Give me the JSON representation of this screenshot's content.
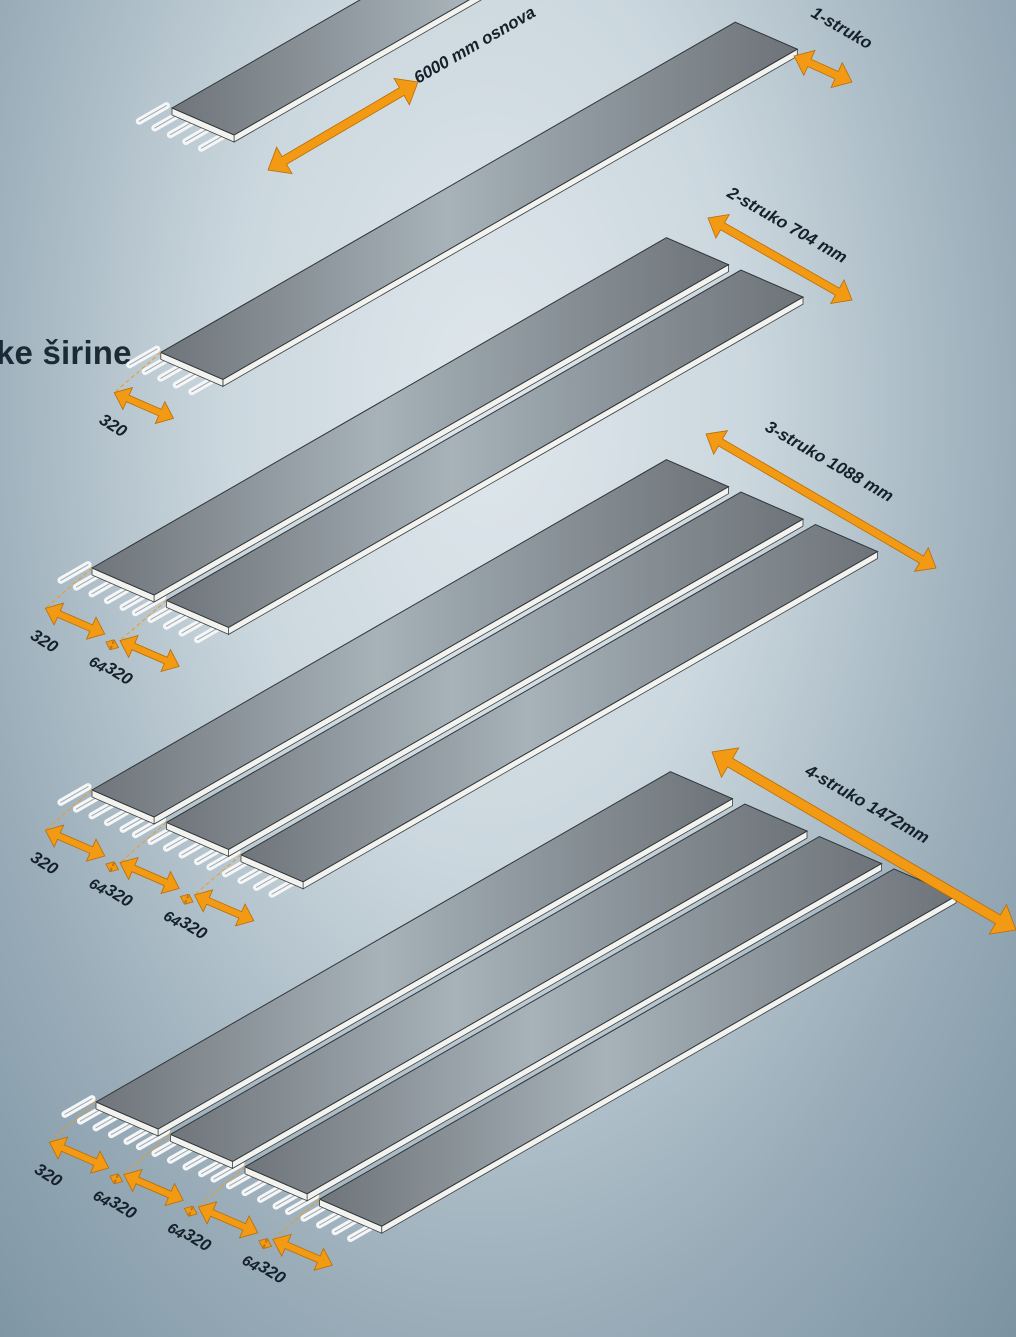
{
  "headline": "ke širine.",
  "colors": {
    "arrow": "#f39a14",
    "panel_top": "#7d8388",
    "panel_edge": "#f2f2ee",
    "leader": "#f39a14",
    "text": "#15202a"
  },
  "icons": [
    "double-arrow-icon",
    "roller-conveyor-icon"
  ],
  "base_label": "6000 mm osnova",
  "groups": [
    {
      "name": "1-struko",
      "label": "1-struko",
      "strips": 1,
      "widths": [
        "320"
      ],
      "gaps": []
    },
    {
      "name": "2-struko",
      "label": "2-struko 704 mm",
      "strips": 2,
      "widths": [
        "320",
        "320"
      ],
      "gaps": [
        "64"
      ]
    },
    {
      "name": "3-struko",
      "label": "3-struko 1088 mm",
      "strips": 3,
      "widths": [
        "320",
        "320",
        "320"
      ],
      "gaps": [
        "64",
        "64"
      ]
    },
    {
      "name": "4-struko",
      "label": "4-struko 1472mm",
      "strips": 4,
      "widths": [
        "320",
        "320",
        "320",
        "320"
      ],
      "gaps": [
        "64",
        "64",
        "64"
      ]
    }
  ]
}
